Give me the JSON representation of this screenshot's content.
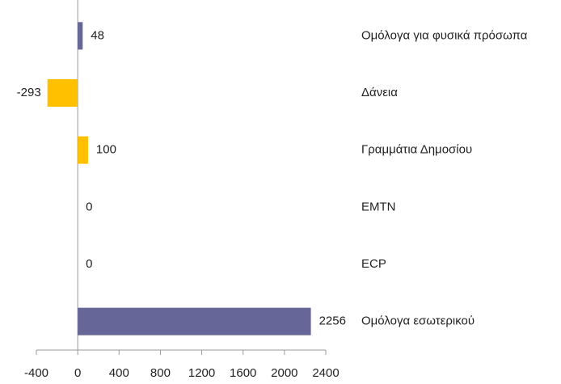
{
  "chart_data": {
    "type": "bar",
    "orientation": "horizontal",
    "categories": [
      "Ομόλογα για φυσικά πρόσωπα",
      "Δάνεια",
      "Γραμμάτια Δημοσίου",
      "EMTN",
      "ECP",
      "Ομόλογα εσωτερικού"
    ],
    "values": [
      48,
      -293,
      100,
      0,
      0,
      2256
    ],
    "colors": [
      "#666699",
      "#ffc000",
      "#ffc000",
      "#666699",
      "#666699",
      "#666699"
    ],
    "xlim": [
      -400,
      2400
    ],
    "xticks": [
      -400,
      0,
      400,
      800,
      1200,
      1600,
      2000,
      2400
    ],
    "grid": false
  }
}
